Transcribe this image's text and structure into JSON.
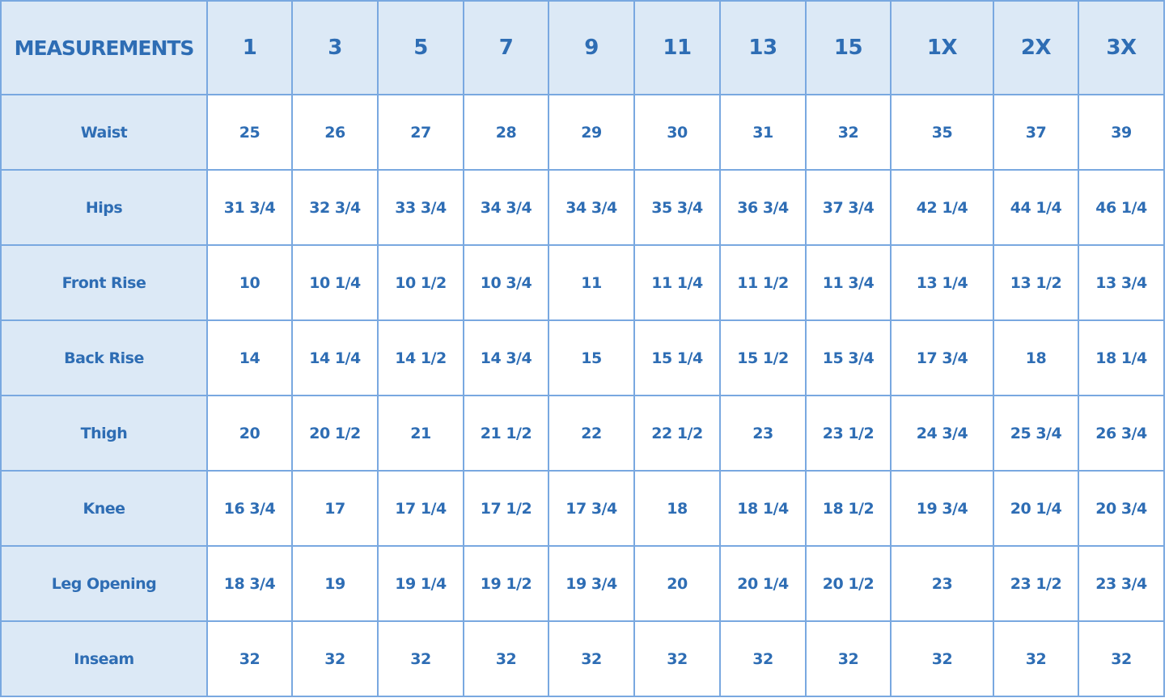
{
  "table": {
    "corner_label": "MEASUREMENTS",
    "sizes": [
      "1",
      "3",
      "5",
      "7",
      "9",
      "11",
      "13",
      "15",
      "1X",
      "2X",
      "3X"
    ],
    "rows": [
      {
        "label": "Waist",
        "values": [
          "25",
          "26",
          "27",
          "28",
          "29",
          "30",
          "31",
          "32",
          "35",
          "37",
          "39"
        ]
      },
      {
        "label": "Hips",
        "values": [
          "31 3/4",
          "32 3/4",
          "33 3/4",
          "34 3/4",
          "34 3/4",
          "35 3/4",
          "36 3/4",
          "37 3/4",
          "42 1/4",
          "44 1/4",
          "46 1/4"
        ]
      },
      {
        "label": "Front Rise",
        "values": [
          "10",
          "10 1/4",
          "10 1/2",
          "10 3/4",
          "11",
          "11 1/4",
          "11 1/2",
          "11 3/4",
          "13 1/4",
          "13 1/2",
          "13 3/4"
        ]
      },
      {
        "label": "Back Rise",
        "values": [
          "14",
          "14 1/4",
          "14 1/2",
          "14 3/4",
          "15",
          "15 1/4",
          "15 1/2",
          "15 3/4",
          "17 3/4",
          "18",
          "18 1/4"
        ]
      },
      {
        "label": "Thigh",
        "values": [
          "20",
          "20 1/2",
          "21",
          "21 1/2",
          "22",
          "22 1/2",
          "23",
          "23 1/2",
          "24 3/4",
          "25 3/4",
          "26 3/4"
        ]
      },
      {
        "label": "Knee",
        "values": [
          "16 3/4",
          "17",
          "17 1/4",
          "17 1/2",
          "17 3/4",
          "18",
          "18 1/4",
          "18 1/2",
          "19 3/4",
          "20 1/4",
          "20 3/4"
        ]
      },
      {
        "label": "Leg Opening",
        "values": [
          "18 3/4",
          "19",
          "19 1/4",
          "19 1/2",
          "19 3/4",
          "20",
          "20 1/4",
          "20 1/2",
          "23",
          "23 1/2",
          "23 3/4"
        ]
      },
      {
        "label": "Inseam",
        "values": [
          "32",
          "32",
          "32",
          "32",
          "32",
          "32",
          "32",
          "32",
          "32",
          "32",
          "32"
        ]
      }
    ]
  },
  "colors": {
    "text": "#2e6db4",
    "border": "#79a8e0",
    "header_bg": "#dce9f6"
  }
}
